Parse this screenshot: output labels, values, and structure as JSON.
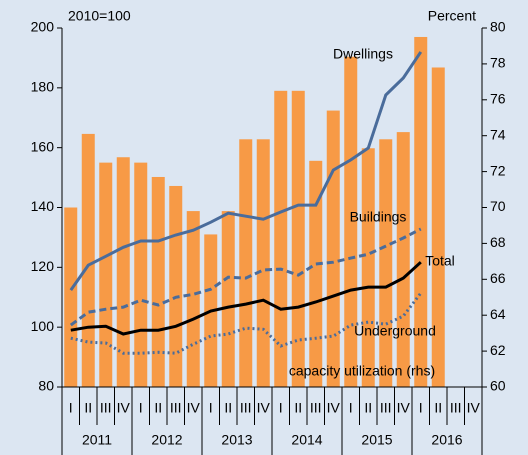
{
  "chart_data": {
    "type": "bar_line",
    "left_axis_label": "2010=100",
    "right_axis_label": "Percent",
    "categories": [
      "I",
      "II",
      "III",
      "IV",
      "I",
      "II",
      "III",
      "IV",
      "I",
      "II",
      "III",
      "IV",
      "I",
      "II",
      "III",
      "IV",
      "I",
      "II",
      "III",
      "IV",
      "I",
      "II",
      "III",
      "IV"
    ],
    "years": [
      "2011",
      "2012",
      "2013",
      "2014",
      "2015",
      "2016"
    ],
    "series": [
      {
        "name": "capacity utilization (rhs)",
        "kind": "bar",
        "axis": "y2",
        "color": "#f79a46",
        "values": [
          70,
          74.1,
          72.5,
          72.8,
          72.5,
          71.7,
          71.2,
          69.8,
          68.5,
          69.8,
          73.8,
          73.8,
          76.5,
          76.5,
          72.6,
          75.4,
          78.4,
          73.3,
          73.8,
          74.2,
          79.5,
          77.8,
          null,
          null
        ]
      },
      {
        "name": "Dwellings",
        "kind": "line",
        "style": "solid",
        "color": "#4a6c9b",
        "values": [
          112.4,
          120.7,
          123.7,
          126.7,
          128.8,
          128.8,
          130.8,
          132.4,
          135.1,
          138.1,
          137.1,
          136.1,
          138.5,
          140.8,
          140.8,
          152.5,
          155.9,
          159.9,
          177.6,
          183.3,
          192,
          null,
          null,
          null
        ]
      },
      {
        "name": "Buildings",
        "kind": "line",
        "style": "dashed",
        "color": "#4a6c9b",
        "values": [
          100.7,
          105,
          106,
          106.7,
          109,
          107.4,
          110,
          111,
          112.7,
          116.7,
          116.4,
          119.1,
          119.4,
          117.4,
          121.1,
          121.7,
          123.1,
          124.4,
          127.1,
          129.8,
          132.8,
          null,
          null,
          null
        ]
      },
      {
        "name": "Total",
        "kind": "line",
        "style": "solid",
        "color": "#000000",
        "values": [
          99,
          100,
          100.3,
          97.7,
          99,
          99,
          100.3,
          102.7,
          105.4,
          106.7,
          107.7,
          109,
          106,
          106.7,
          108.4,
          110.4,
          112.4,
          113.4,
          113.4,
          116.4,
          121.7,
          null,
          null,
          null
        ]
      },
      {
        "name": "Underground",
        "kind": "line",
        "style": "dotted",
        "color": "#4a6c9b",
        "values": [
          96.3,
          95,
          94.7,
          91.3,
          91.3,
          91.6,
          91.3,
          94.3,
          97,
          97.7,
          99.7,
          99.3,
          93.7,
          95.7,
          96.3,
          97,
          100.7,
          101.7,
          101,
          103.7,
          111.4,
          null,
          null,
          null
        ]
      }
    ],
    "ylim": [
      80,
      200
    ],
    "yticks": [
      80,
      100,
      120,
      140,
      160,
      180,
      200
    ],
    "y2lim": [
      60,
      80
    ],
    "y2ticks": [
      60,
      62,
      64,
      66,
      68,
      70,
      72,
      74,
      76,
      78,
      80
    ]
  }
}
